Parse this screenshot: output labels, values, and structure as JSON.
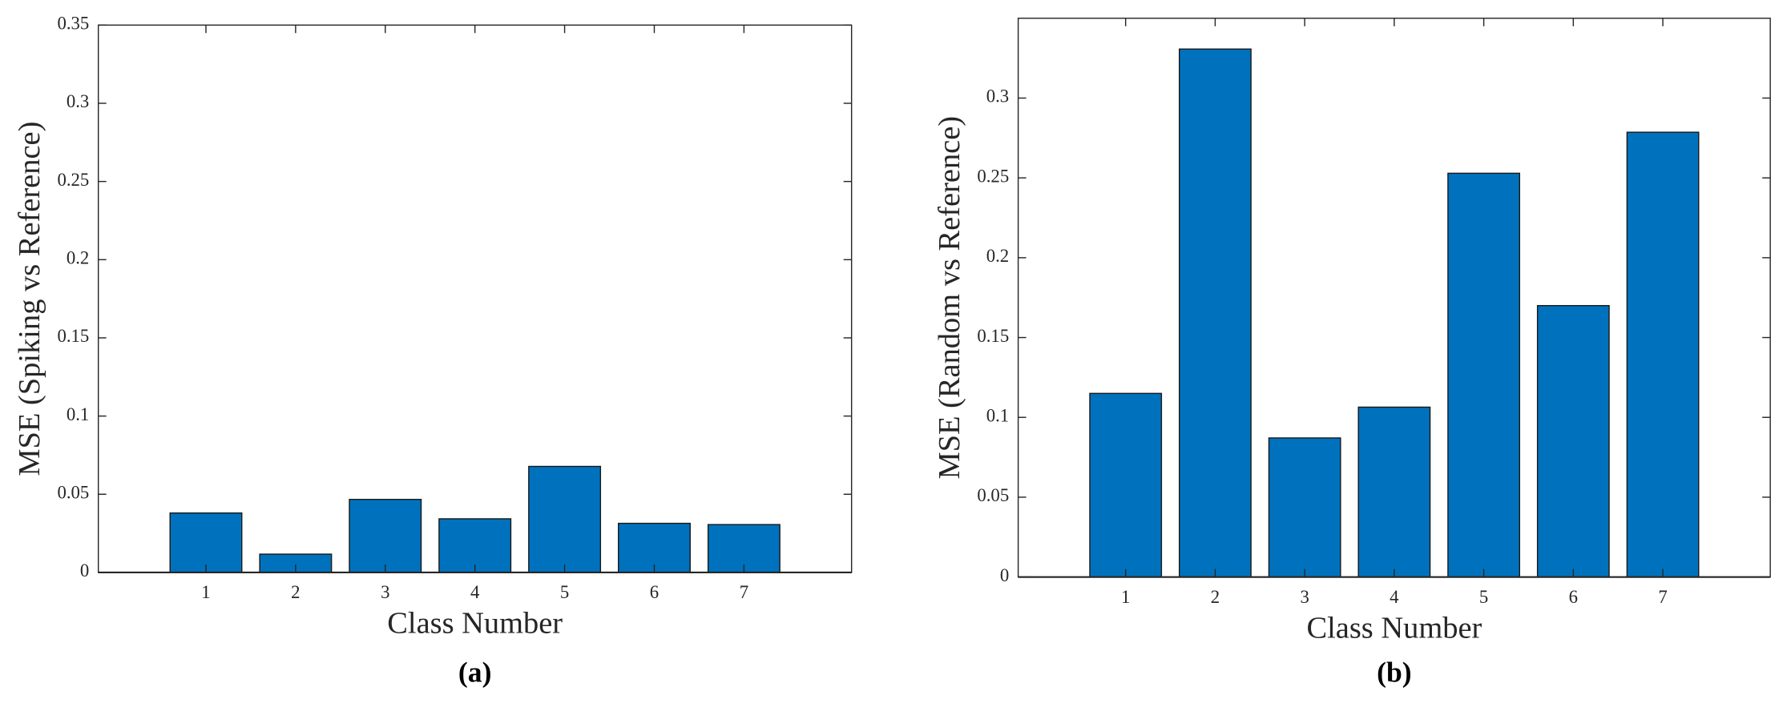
{
  "chart_data": [
    {
      "type": "bar",
      "label": "(a)",
      "xlabel": "Class Number",
      "ylabel": "MSE (Spiking vs Reference)",
      "x": [
        1,
        2,
        3,
        4,
        5,
        6,
        7
      ],
      "values": [
        0.038,
        0.0117,
        0.0467,
        0.0343,
        0.0678,
        0.0314,
        0.0306
      ],
      "color": "#0072bd",
      "xlim": [
        -0.2,
        8.2
      ],
      "xticks": [
        1,
        2,
        3,
        4,
        5,
        6,
        7
      ],
      "ylim": [
        0,
        0.35
      ],
      "yticks": [
        0,
        0.05,
        0.1,
        0.15,
        0.2,
        0.25,
        0.3,
        0.35
      ]
    },
    {
      "type": "bar",
      "label": "(b)",
      "xlabel": "Class Number",
      "ylabel": "MSE (Random vs Reference)",
      "x": [
        1,
        2,
        3,
        4,
        5,
        6,
        7
      ],
      "values": [
        0.115,
        0.3307,
        0.0871,
        0.1064,
        0.2529,
        0.17,
        0.2786
      ],
      "color": "#0072bd",
      "xlim": [
        -0.2,
        8.2
      ],
      "xticks": [
        1,
        2,
        3,
        4,
        5,
        6,
        7
      ],
      "ylim": [
        0,
        0.35
      ],
      "yticks": [
        0,
        0.05,
        0.1,
        0.15,
        0.2,
        0.25,
        0.3
      ]
    }
  ]
}
